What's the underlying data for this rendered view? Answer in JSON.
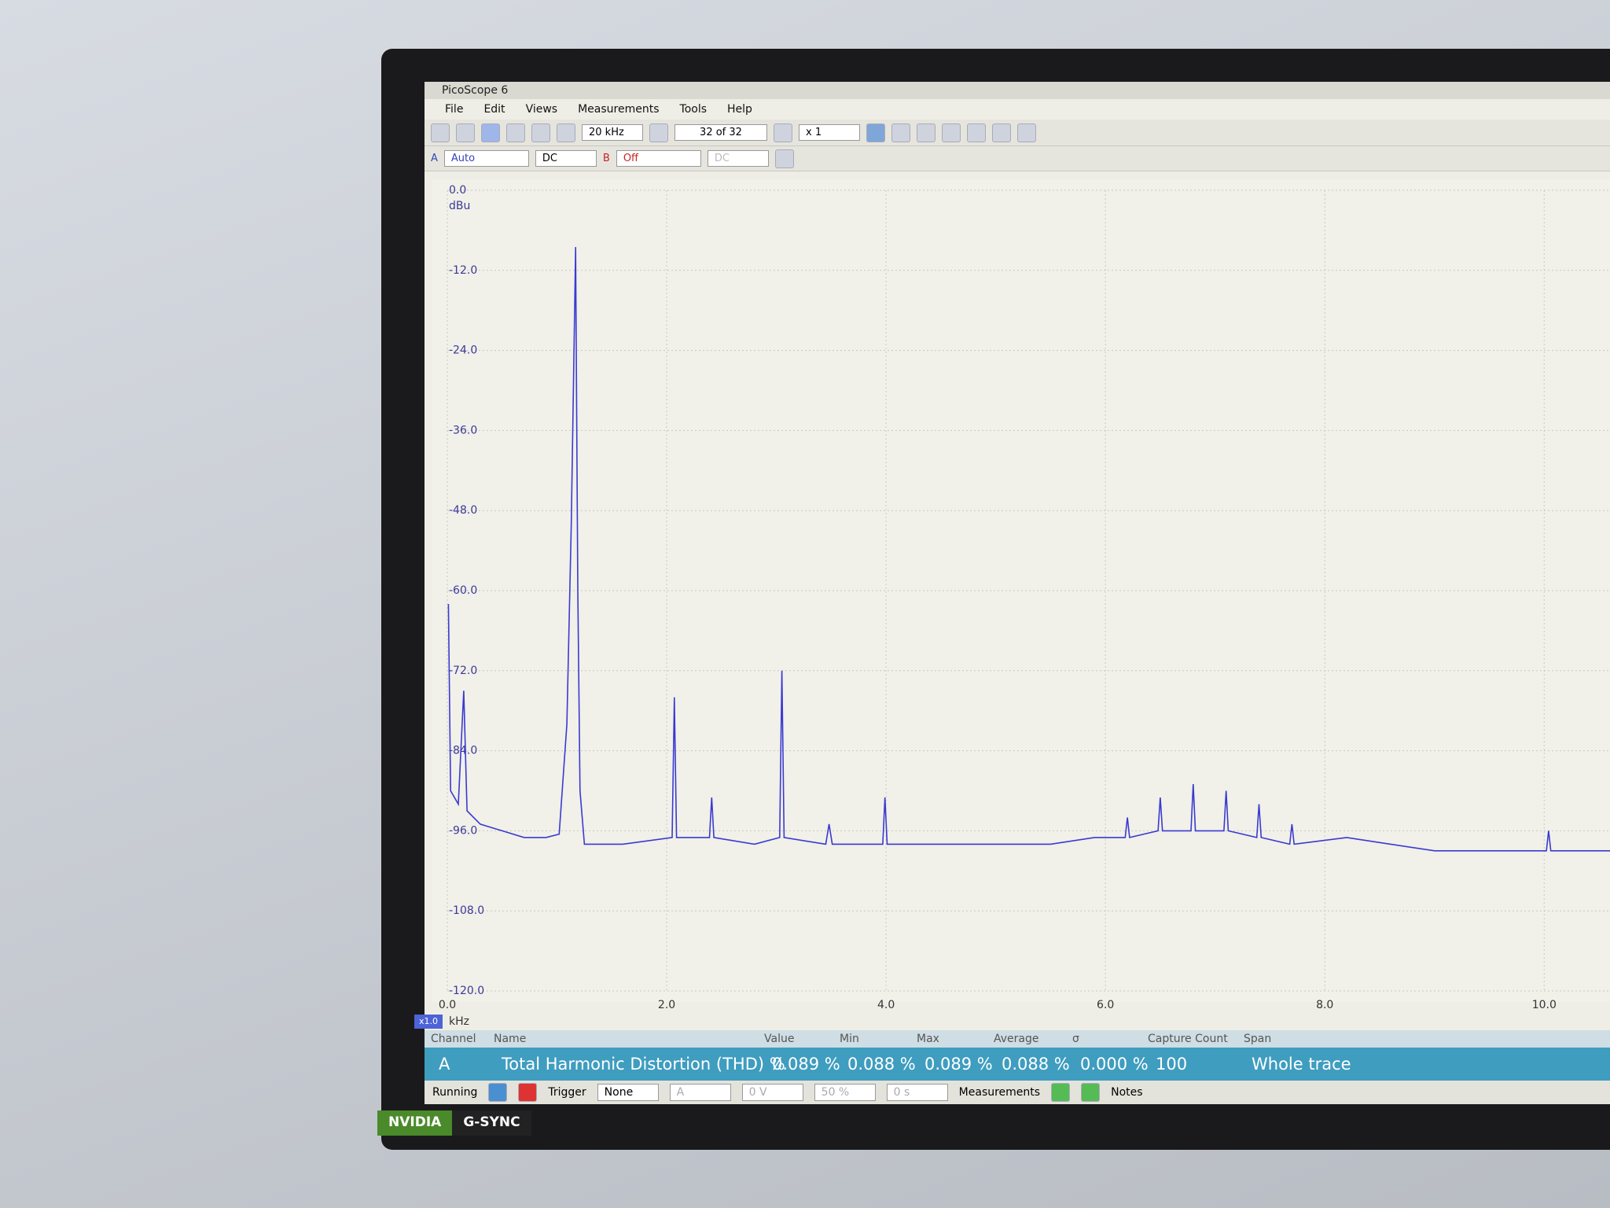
{
  "window": {
    "title": "PicoScope 6",
    "menu": [
      "File",
      "Edit",
      "Views",
      "Measurements",
      "Tools",
      "Help"
    ],
    "toolbar": {
      "timebase": "20 kHz",
      "buffer": "32 of 32",
      "zoom": "x 1",
      "channel_a": "A",
      "range_a": "Auto",
      "coupling_a": "DC",
      "channel_b": "B",
      "range_b": "Off",
      "coupling_b": "DC"
    }
  },
  "chart_data": {
    "type": "line",
    "y_unit": "dBu",
    "x_unit": "kHz",
    "x_scale": "x1.0",
    "color": "#3a3ad0",
    "grid": true,
    "xlim": [
      0,
      10.6
    ],
    "xticks": [
      {
        "value": 0,
        "label": "0.0"
      },
      {
        "value": 2,
        "label": "2.0"
      },
      {
        "value": 4,
        "label": "4.0"
      },
      {
        "value": 6,
        "label": "6.0"
      },
      {
        "value": 8,
        "label": "8.0"
      },
      {
        "value": 10,
        "label": "10.0"
      }
    ],
    "ylim": [
      -120,
      0
    ],
    "yticks": [
      {
        "value": 0,
        "label": "0.0"
      },
      {
        "value": -12,
        "label": "-12.0"
      },
      {
        "value": -24,
        "label": "-24.0"
      },
      {
        "value": -36,
        "label": "-36.0"
      },
      {
        "value": -48,
        "label": "-48.0"
      },
      {
        "value": -60,
        "label": "-60.0"
      },
      {
        "value": -72,
        "label": "-72.0"
      },
      {
        "value": -84,
        "label": "-84.0"
      },
      {
        "value": -96,
        "label": "-96.0"
      },
      {
        "value": -108,
        "label": "-108.0"
      },
      {
        "value": -120,
        "label": "-120.0"
      }
    ],
    "x": [
      0.01,
      0.03,
      0.1,
      0.15,
      0.18,
      0.3,
      0.5,
      0.7,
      0.9,
      1.02,
      1.09,
      1.13,
      1.17,
      1.19,
      1.21,
      1.25,
      1.6,
      2.05,
      2.07,
      2.09,
      2.39,
      2.41,
      2.43,
      2.8,
      3.03,
      3.05,
      3.07,
      3.45,
      3.48,
      3.51,
      3.97,
      3.99,
      4.01,
      4.5,
      5.0,
      5.5,
      5.9,
      6.18,
      6.2,
      6.22,
      6.48,
      6.5,
      6.52,
      6.78,
      6.8,
      6.82,
      7.08,
      7.1,
      7.12,
      7.38,
      7.4,
      7.42,
      7.68,
      7.7,
      7.72,
      8.2,
      8.6,
      9.0,
      9.5,
      10.02,
      10.04,
      10.06,
      10.6
    ],
    "values": [
      -62,
      -90,
      -92,
      -75,
      -93,
      -95,
      -96,
      -97,
      -97,
      -96.5,
      -80,
      -50,
      -8.5,
      -60,
      -90,
      -98,
      -98,
      -97,
      -76,
      -97,
      -97,
      -91,
      -97,
      -98,
      -97,
      -72,
      -97,
      -98,
      -95,
      -98,
      -98,
      -91,
      -98,
      -98,
      -98,
      -98,
      -97,
      -97,
      -94,
      -97,
      -96,
      -91,
      -96,
      -96,
      -89,
      -96,
      -96,
      -90,
      -96,
      -97,
      -92,
      -97,
      -98,
      -95,
      -98,
      -97,
      -98,
      -99,
      -99,
      -99,
      -96,
      -99,
      -99
    ]
  },
  "measurements": {
    "headers": [
      "Channel",
      "Name",
      "Value",
      "Min",
      "Max",
      "Average",
      "σ",
      "Capture Count",
      "Span"
    ],
    "rows": [
      [
        "A",
        "Total Harmonic Distortion (THD) %",
        "0.089 %",
        "0.088 %",
        "0.089 %",
        "0.088 %",
        "0.000 %",
        "100",
        "Whole trace"
      ]
    ]
  },
  "status": {
    "run": "Running",
    "trigger_label": "Trigger",
    "trigger": "None",
    "trigger_channel": "A",
    "level": "0 V",
    "position": "50 %",
    "delay": "0 s",
    "measurements": "Measurements",
    "notes": "Notes"
  },
  "bezel": {
    "brand": "NVIDIA",
    "sync": "G-SYNC"
  }
}
